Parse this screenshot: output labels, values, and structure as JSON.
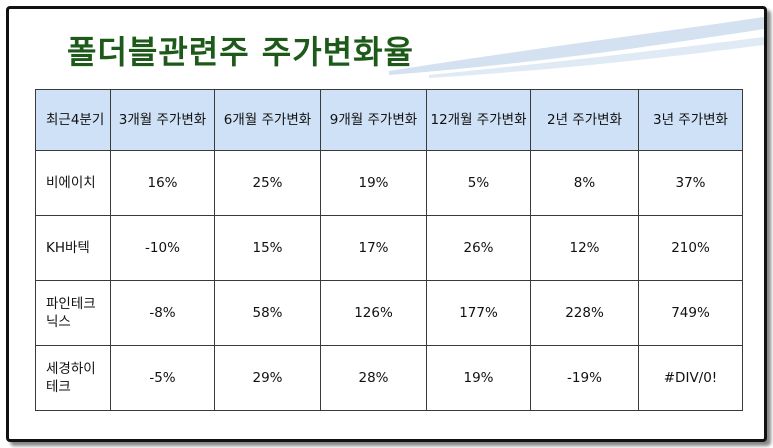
{
  "title": "폴더블관련주 주가변화율",
  "table": {
    "headers": [
      "최근4분기",
      "3개월 주가변화",
      "6개월 주가변화",
      "9개월 주가변화",
      "12개월 주가변화",
      "2년 주가변화",
      "3년 주가변화"
    ],
    "rows": [
      {
        "name": "비에이치",
        "values": [
          "16%",
          "25%",
          "19%",
          "5%",
          "8%",
          "37%"
        ]
      },
      {
        "name": "KH바텍",
        "values": [
          "-10%",
          "15%",
          "17%",
          "26%",
          "12%",
          "210%"
        ]
      },
      {
        "name": "파인테크닉스",
        "values": [
          "-8%",
          "58%",
          "126%",
          "177%",
          "228%",
          "749%"
        ]
      },
      {
        "name": "세경하이테크",
        "values": [
          "-5%",
          "29%",
          "28%",
          "19%",
          "-19%",
          "#DIV/0!"
        ]
      }
    ]
  }
}
